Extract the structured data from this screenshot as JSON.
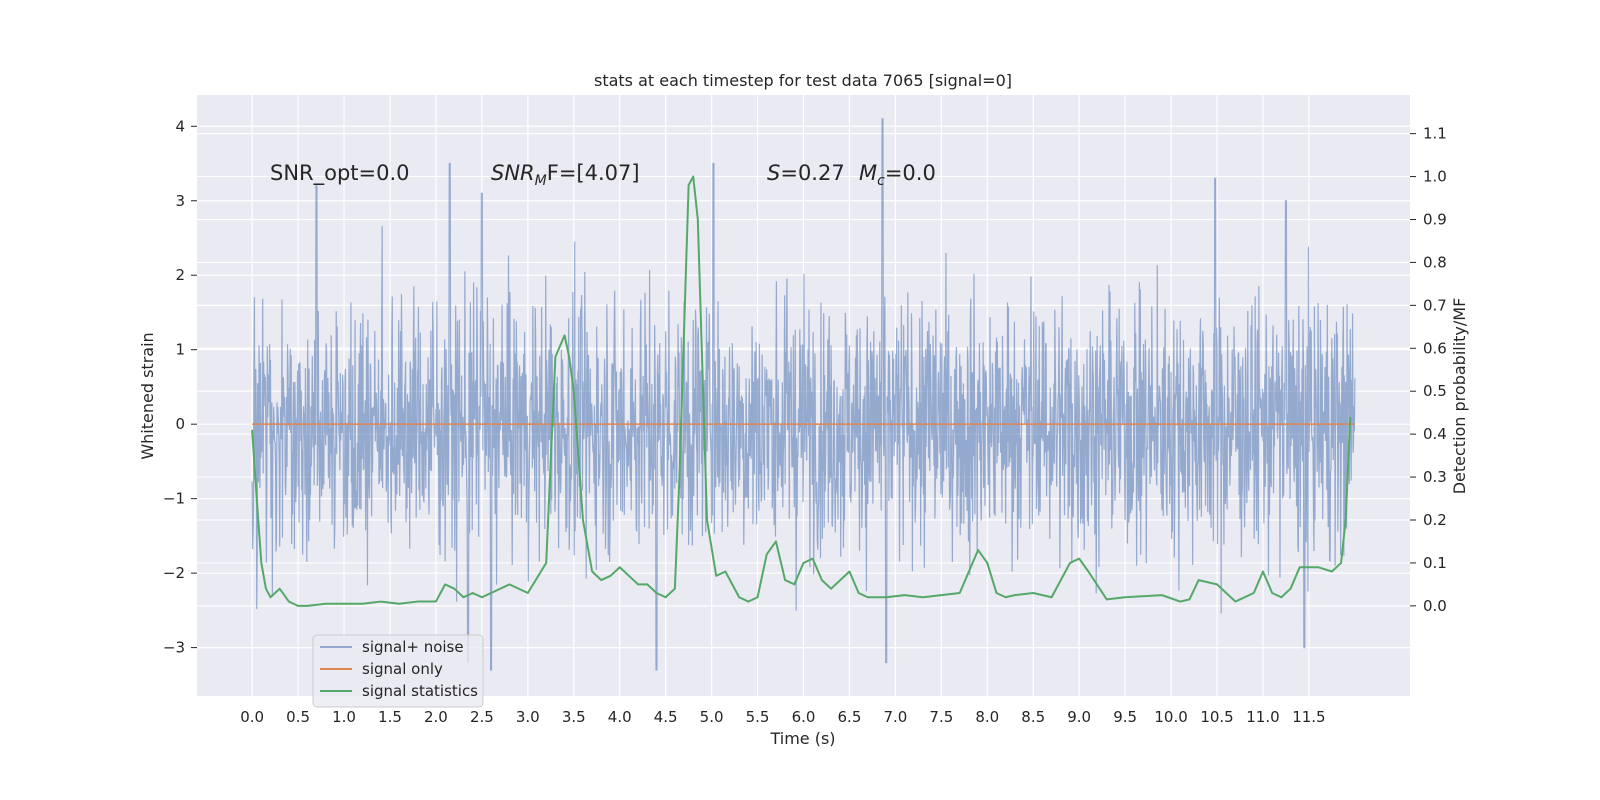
{
  "chart_data": {
    "type": "line",
    "title": "stats at each timestep for test data 7065 [signal=0]",
    "xlabel": "Time (s)",
    "ylabel": "Whitened strain",
    "ylabel_right": "Detection probability/MF",
    "xlim": [
      -0.6,
      12.6
    ],
    "ylim": [
      -3.65,
      4.42
    ],
    "ylim_right": [
      -0.21,
      1.19
    ],
    "x_ticks": [
      0.0,
      0.5,
      1.0,
      1.5,
      2.0,
      2.5,
      3.0,
      3.5,
      4.0,
      4.5,
      5.0,
      5.5,
      6.0,
      6.5,
      7.0,
      7.5,
      8.0,
      8.5,
      9.0,
      9.5,
      10.0,
      10.5,
      11.0,
      11.5
    ],
    "x_tick_labels": [
      "0.0",
      "0.5",
      "1.0",
      "1.5",
      "2.0",
      "2.5",
      "3.0",
      "3.5",
      "4.0",
      "4.5",
      "5.0",
      "5.5",
      "6.0",
      "6.5",
      "7.0",
      "7.5",
      "8.0",
      "8.5",
      "9.0",
      "9.5",
      "10.0",
      "10.5",
      "11.0",
      "11.5"
    ],
    "y_ticks": [
      -3,
      -2,
      -1,
      0,
      1,
      2,
      3,
      4
    ],
    "y_tick_labels": [
      "−3",
      "−2",
      "−1",
      "0",
      "1",
      "2",
      "3",
      "4"
    ],
    "y_right_ticks": [
      0.0,
      0.1,
      0.2,
      0.3,
      0.4,
      0.5,
      0.6,
      0.7,
      0.8,
      0.9,
      1.0,
      1.1
    ],
    "y_right_tick_labels": [
      "0.0",
      "0.1",
      "0.2",
      "0.3",
      "0.4",
      "0.5",
      "0.6",
      "0.7",
      "0.8",
      "0.9",
      "1.0",
      "1.1"
    ],
    "grid": true,
    "legend_position": "lower-left",
    "series": [
      {
        "name": "signal+ noise",
        "axis": "left",
        "color": "#4c72b0",
        "opacity": 0.55,
        "time_range": [
          0.0,
          12.0
        ],
        "typical_range": [
          -1.6,
          1.6
        ],
        "envelope": [
          -3.3,
          4.1
        ],
        "peaks": [
          {
            "x": 0.7,
            "y": 3.2
          },
          {
            "x": 2.15,
            "y": 3.5
          },
          {
            "x": 2.5,
            "y": 3.1
          },
          {
            "x": 5.02,
            "y": 3.5
          },
          {
            "x": 6.86,
            "y": 4.1
          },
          {
            "x": 10.48,
            "y": 3.3
          },
          {
            "x": 11.25,
            "y": 3.0
          },
          {
            "x": 2.35,
            "y": -3.2
          },
          {
            "x": 2.6,
            "y": -3.3
          },
          {
            "x": 4.4,
            "y": -3.3
          },
          {
            "x": 6.9,
            "y": -3.2
          },
          {
            "x": 11.45,
            "y": -3.0
          }
        ]
      },
      {
        "name": "signal only",
        "axis": "left",
        "color": "#dd8452",
        "x": [
          0.0,
          12.0
        ],
        "y": [
          0.0,
          0.0
        ]
      },
      {
        "name": "signal statistics",
        "axis": "right",
        "color": "#55a868",
        "x": [
          0.0,
          0.05,
          0.1,
          0.15,
          0.2,
          0.3,
          0.4,
          0.5,
          0.6,
          0.8,
          1.0,
          1.2,
          1.4,
          1.6,
          1.8,
          2.0,
          2.1,
          2.2,
          2.3,
          2.4,
          2.5,
          2.6,
          2.8,
          3.0,
          3.2,
          3.3,
          3.4,
          3.45,
          3.5,
          3.6,
          3.7,
          3.8,
          3.9,
          4.0,
          4.1,
          4.2,
          4.3,
          4.4,
          4.5,
          4.6,
          4.65,
          4.75,
          4.8,
          4.85,
          4.95,
          5.05,
          5.15,
          5.3,
          5.4,
          5.5,
          5.6,
          5.7,
          5.8,
          5.9,
          6.0,
          6.1,
          6.2,
          6.3,
          6.4,
          6.5,
          6.6,
          6.7,
          6.9,
          7.1,
          7.3,
          7.5,
          7.7,
          7.9,
          8.0,
          8.1,
          8.2,
          8.3,
          8.5,
          8.7,
          8.9,
          9.0,
          9.1,
          9.3,
          9.5,
          9.9,
          10.1,
          10.2,
          10.3,
          10.5,
          10.7,
          10.9,
          11.0,
          11.1,
          11.2,
          11.3,
          11.4,
          11.6,
          11.75,
          11.85,
          11.9,
          11.95
        ],
        "y": [
          0.41,
          0.25,
          0.1,
          0.04,
          0.02,
          0.04,
          0.01,
          0.0,
          0.0,
          0.005,
          0.005,
          0.005,
          0.01,
          0.005,
          0.01,
          0.01,
          0.05,
          0.04,
          0.02,
          0.03,
          0.02,
          0.03,
          0.05,
          0.03,
          0.1,
          0.58,
          0.63,
          0.58,
          0.5,
          0.2,
          0.08,
          0.06,
          0.07,
          0.09,
          0.07,
          0.05,
          0.05,
          0.03,
          0.02,
          0.04,
          0.3,
          0.98,
          1.0,
          0.9,
          0.2,
          0.07,
          0.08,
          0.02,
          0.01,
          0.02,
          0.12,
          0.15,
          0.06,
          0.05,
          0.1,
          0.11,
          0.06,
          0.04,
          0.06,
          0.08,
          0.03,
          0.02,
          0.02,
          0.025,
          0.02,
          0.025,
          0.03,
          0.13,
          0.1,
          0.03,
          0.02,
          0.025,
          0.03,
          0.02,
          0.1,
          0.11,
          0.08,
          0.015,
          0.02,
          0.025,
          0.01,
          0.015,
          0.06,
          0.05,
          0.01,
          0.03,
          0.08,
          0.03,
          0.02,
          0.04,
          0.09,
          0.09,
          0.08,
          0.1,
          0.2,
          0.44
        ]
      }
    ],
    "annotations": [
      {
        "id": "snr_opt",
        "text": "SNR_opt=0.0"
      },
      {
        "id": "snr_mf_main",
        "text": "SNR",
        "subscript": "M",
        "suffix": "F=[4.07]"
      },
      {
        "id": "s_stat",
        "text": "S",
        "suffix": "=0.27"
      },
      {
        "id": "mc_stat",
        "text": "M",
        "subscript": "c",
        "suffix": "=0.0"
      }
    ]
  }
}
